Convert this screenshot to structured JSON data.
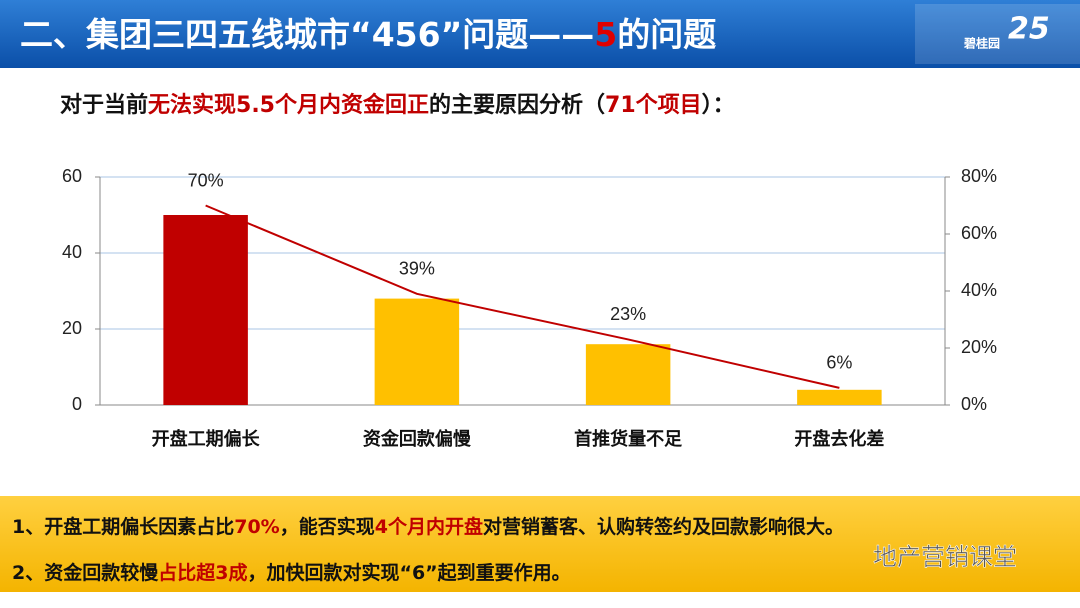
{
  "header": {
    "segments": [
      {
        "text": "二、集团三四五线城市“456”问题——",
        "highlight": false
      },
      {
        "text": "5",
        "highlight": true
      },
      {
        "text": "的问题",
        "highlight": false
      }
    ],
    "logo": "碧桂园",
    "anniversary": "25"
  },
  "subtitle": {
    "segments": [
      {
        "text": "对于当前",
        "highlight": false
      },
      {
        "text": "无法实现5.5个月内资金回正",
        "highlight": true
      },
      {
        "text": "的主要原因分析（",
        "highlight": false
      },
      {
        "text": "71个项目",
        "highlight": true
      },
      {
        "text": "）：",
        "highlight": false
      }
    ]
  },
  "chart_data": {
    "type": "bar",
    "categories": [
      "开盘工期偏长",
      "资金回款偏慢",
      "首推货量不足",
      "开盘去化差"
    ],
    "series": [
      {
        "type": "bar",
        "colors": [
          "#c00000",
          "#ffc000",
          "#ffc000",
          "#ffc000"
        ],
        "values": [
          50,
          28,
          16,
          4
        ]
      },
      {
        "type": "line",
        "axis": "y2",
        "color": "#c00000",
        "values": [
          70,
          39,
          23,
          6
        ],
        "value_labels": [
          "70%",
          "39%",
          "23%",
          "6%"
        ]
      }
    ],
    "ylim": [
      0,
      60
    ],
    "yticks": [
      0,
      20,
      40,
      60
    ],
    "y2lim": [
      0,
      80
    ],
    "y2ticks": [
      {
        "value": 0,
        "label": "0%"
      },
      {
        "value": 20,
        "label": "20%"
      },
      {
        "value": 40,
        "label": "40%"
      },
      {
        "value": 60,
        "label": "60%"
      },
      {
        "value": 80,
        "label": "80%"
      }
    ],
    "grid": true
  },
  "notes": [
    {
      "segments": [
        {
          "text": "1、开盘工期偏长因素占比",
          "highlight": false
        },
        {
          "text": "70%",
          "highlight": true
        },
        {
          "text": "，能否实现",
          "highlight": false
        },
        {
          "text": "4个月内开盘",
          "highlight": true
        },
        {
          "text": "对营销蓄客、认购转签约及回款影响很大。",
          "highlight": false
        }
      ]
    },
    {
      "segments": [
        {
          "text": "2、资金回款较慢",
          "highlight": false
        },
        {
          "text": "占比超3成",
          "highlight": true
        },
        {
          "text": "，加快回款对实现“6”起到重要作用。",
          "highlight": false
        }
      ]
    }
  ],
  "watermark": "地产营销课堂"
}
